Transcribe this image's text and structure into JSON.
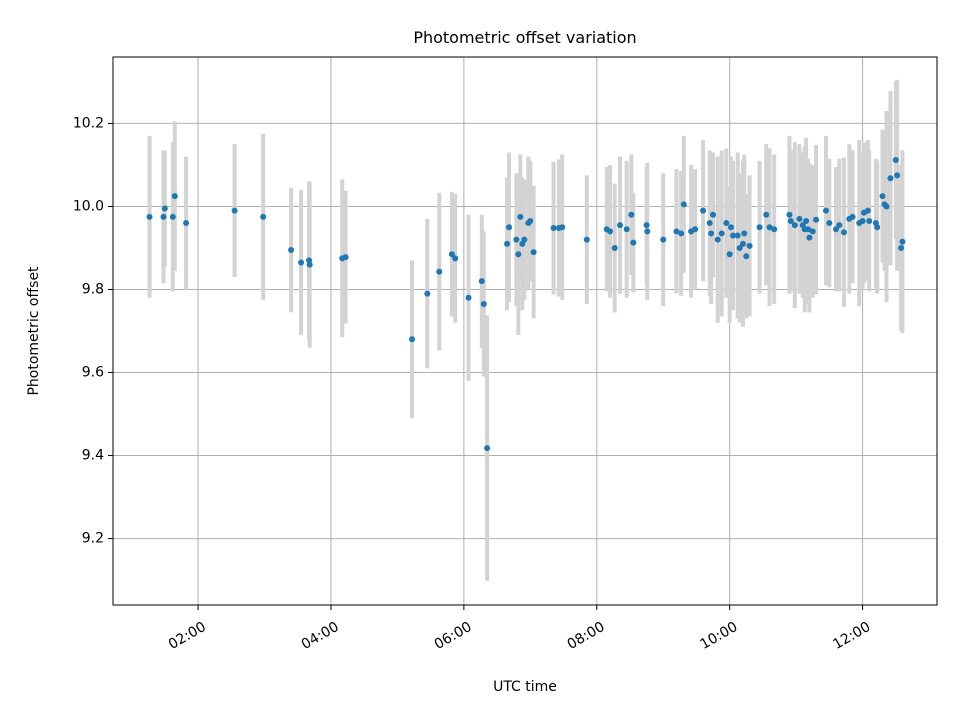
{
  "chart_data": {
    "type": "scatter",
    "title": "Photometric offset variation",
    "xlabel": "UTC time",
    "ylabel": "Photometric offset",
    "x_unit": "hours (UTC)",
    "xlim": [
      0.72,
      13.12
    ],
    "ylim": [
      9.04,
      10.36
    ],
    "x_ticks": [
      {
        "value": 2,
        "label": "02:00"
      },
      {
        "value": 4,
        "label": "04:00"
      },
      {
        "value": 6,
        "label": "06:00"
      },
      {
        "value": 8,
        "label": "08:00"
      },
      {
        "value": 10,
        "label": "10:00"
      },
      {
        "value": 12,
        "label": "12:00"
      }
    ],
    "y_ticks": [
      {
        "value": 9.2,
        "label": "9.2"
      },
      {
        "value": 9.4,
        "label": "9.4"
      },
      {
        "value": 9.6,
        "label": "9.6"
      },
      {
        "value": 9.8,
        "label": "9.8"
      },
      {
        "value": 10.0,
        "label": "10.0"
      },
      {
        "value": 10.2,
        "label": "10.2"
      }
    ],
    "grid": true,
    "colors": {
      "marker": "#1f77b4",
      "errorbar": "#d3d3d3",
      "grid": "#b0b0b0"
    },
    "series": [
      {
        "points": [
          [
            1.27,
            9.975,
            0.195
          ],
          [
            1.48,
            9.975,
            0.16
          ],
          [
            1.5,
            9.995,
            0.14
          ],
          [
            1.62,
            9.975,
            0.18
          ],
          [
            1.65,
            10.025,
            0.18
          ],
          [
            1.82,
            9.96,
            0.16
          ],
          [
            2.55,
            9.99,
            0.16
          ],
          [
            2.98,
            9.975,
            0.2
          ],
          [
            3.4,
            9.895,
            0.15
          ],
          [
            3.55,
            9.865,
            0.175
          ],
          [
            3.67,
            9.87,
            0.19
          ],
          [
            3.68,
            9.86,
            0.2
          ],
          [
            4.17,
            9.875,
            0.19
          ],
          [
            4.22,
            9.878,
            0.16
          ],
          [
            5.22,
            9.68,
            0.19
          ],
          [
            5.45,
            9.79,
            0.18
          ],
          [
            5.63,
            9.843,
            0.19
          ],
          [
            5.82,
            9.885,
            0.15
          ],
          [
            5.87,
            9.875,
            0.155
          ],
          [
            6.07,
            9.78,
            0.2
          ],
          [
            6.27,
            9.82,
            0.16
          ],
          [
            6.3,
            9.765,
            0.175
          ],
          [
            6.35,
            9.418,
            0.32
          ],
          [
            6.65,
            9.91,
            0.16
          ],
          [
            6.68,
            9.95,
            0.18
          ],
          [
            6.79,
            9.92,
            0.16
          ],
          [
            6.82,
            9.885,
            0.195
          ],
          [
            6.85,
            9.975,
            0.15
          ],
          [
            6.88,
            9.91,
            0.16
          ],
          [
            6.91,
            9.92,
            0.145
          ],
          [
            6.97,
            9.96,
            0.16
          ],
          [
            7.0,
            9.965,
            0.145
          ],
          [
            7.05,
            9.89,
            0.16
          ],
          [
            7.35,
            9.948,
            0.16
          ],
          [
            7.43,
            9.948,
            0.165
          ],
          [
            7.48,
            9.95,
            0.175
          ],
          [
            7.85,
            9.92,
            0.155
          ],
          [
            8.15,
            9.945,
            0.15
          ],
          [
            8.2,
            9.94,
            0.16
          ],
          [
            8.27,
            9.9,
            0.155
          ],
          [
            8.35,
            9.955,
            0.165
          ],
          [
            8.45,
            9.945,
            0.165
          ],
          [
            8.52,
            9.98,
            0.145
          ],
          [
            8.55,
            9.913,
            0.12
          ],
          [
            8.75,
            9.955,
            0.14
          ],
          [
            8.76,
            9.94,
            0.165
          ],
          [
            9.0,
            9.92,
            0.16
          ],
          [
            9.2,
            9.94,
            0.15
          ],
          [
            9.27,
            9.935,
            0.15
          ],
          [
            9.31,
            10.005,
            0.165
          ],
          [
            9.42,
            9.94,
            0.16
          ],
          [
            9.48,
            9.945,
            0.145
          ],
          [
            9.6,
            9.99,
            0.17
          ],
          [
            9.7,
            9.96,
            0.175
          ],
          [
            9.72,
            9.935,
            0.17
          ],
          [
            9.75,
            9.98,
            0.15
          ],
          [
            9.82,
            9.92,
            0.2
          ],
          [
            9.88,
            9.935,
            0.2
          ],
          [
            9.95,
            9.96,
            0.18
          ],
          [
            10.0,
            9.885,
            0.165
          ],
          [
            10.02,
            9.95,
            0.17
          ],
          [
            10.05,
            9.93,
            0.18
          ],
          [
            10.12,
            9.93,
            0.2
          ],
          [
            10.15,
            9.9,
            0.18
          ],
          [
            10.2,
            9.91,
            0.2
          ],
          [
            10.22,
            9.935,
            0.19
          ],
          [
            10.25,
            9.88,
            0.15
          ],
          [
            10.3,
            9.905,
            0.17
          ],
          [
            10.45,
            9.95,
            0.16
          ],
          [
            10.55,
            9.98,
            0.17
          ],
          [
            10.6,
            9.95,
            0.19
          ],
          [
            10.67,
            9.945,
            0.18
          ],
          [
            10.9,
            9.98,
            0.19
          ],
          [
            10.92,
            9.965,
            0.17
          ],
          [
            10.98,
            9.955,
            0.2
          ],
          [
            11.05,
            9.97,
            0.18
          ],
          [
            11.1,
            9.955,
            0.175
          ],
          [
            11.13,
            9.945,
            0.2
          ],
          [
            11.15,
            9.965,
            0.2
          ],
          [
            11.18,
            9.945,
            0.17
          ],
          [
            11.2,
            9.925,
            0.18
          ],
          [
            11.25,
            9.94,
            0.16
          ],
          [
            11.3,
            9.968,
            0.18
          ],
          [
            11.45,
            9.99,
            0.18
          ],
          [
            11.5,
            9.96,
            0.155
          ],
          [
            11.6,
            9.945,
            0.15
          ],
          [
            11.65,
            9.955,
            0.16
          ],
          [
            11.72,
            9.938,
            0.18
          ],
          [
            11.8,
            9.97,
            0.18
          ],
          [
            11.85,
            9.975,
            0.16
          ],
          [
            11.95,
            9.96,
            0.2
          ],
          [
            12.0,
            9.965,
            0.165
          ],
          [
            12.02,
            9.985,
            0.17
          ],
          [
            12.08,
            9.99,
            0.17
          ],
          [
            12.1,
            9.965,
            0.17
          ],
          [
            12.2,
            9.96,
            0.155
          ],
          [
            12.22,
            9.95,
            0.16
          ],
          [
            12.3,
            10.025,
            0.16
          ],
          [
            12.33,
            10.005,
            0.16
          ],
          [
            12.36,
            10.0,
            0.23
          ],
          [
            12.42,
            10.068,
            0.21
          ],
          [
            12.5,
            10.112,
            0.19
          ],
          [
            12.52,
            10.075,
            0.23
          ],
          [
            12.58,
            9.9,
            0.2
          ],
          [
            12.6,
            9.915,
            0.22
          ]
        ]
      }
    ]
  }
}
